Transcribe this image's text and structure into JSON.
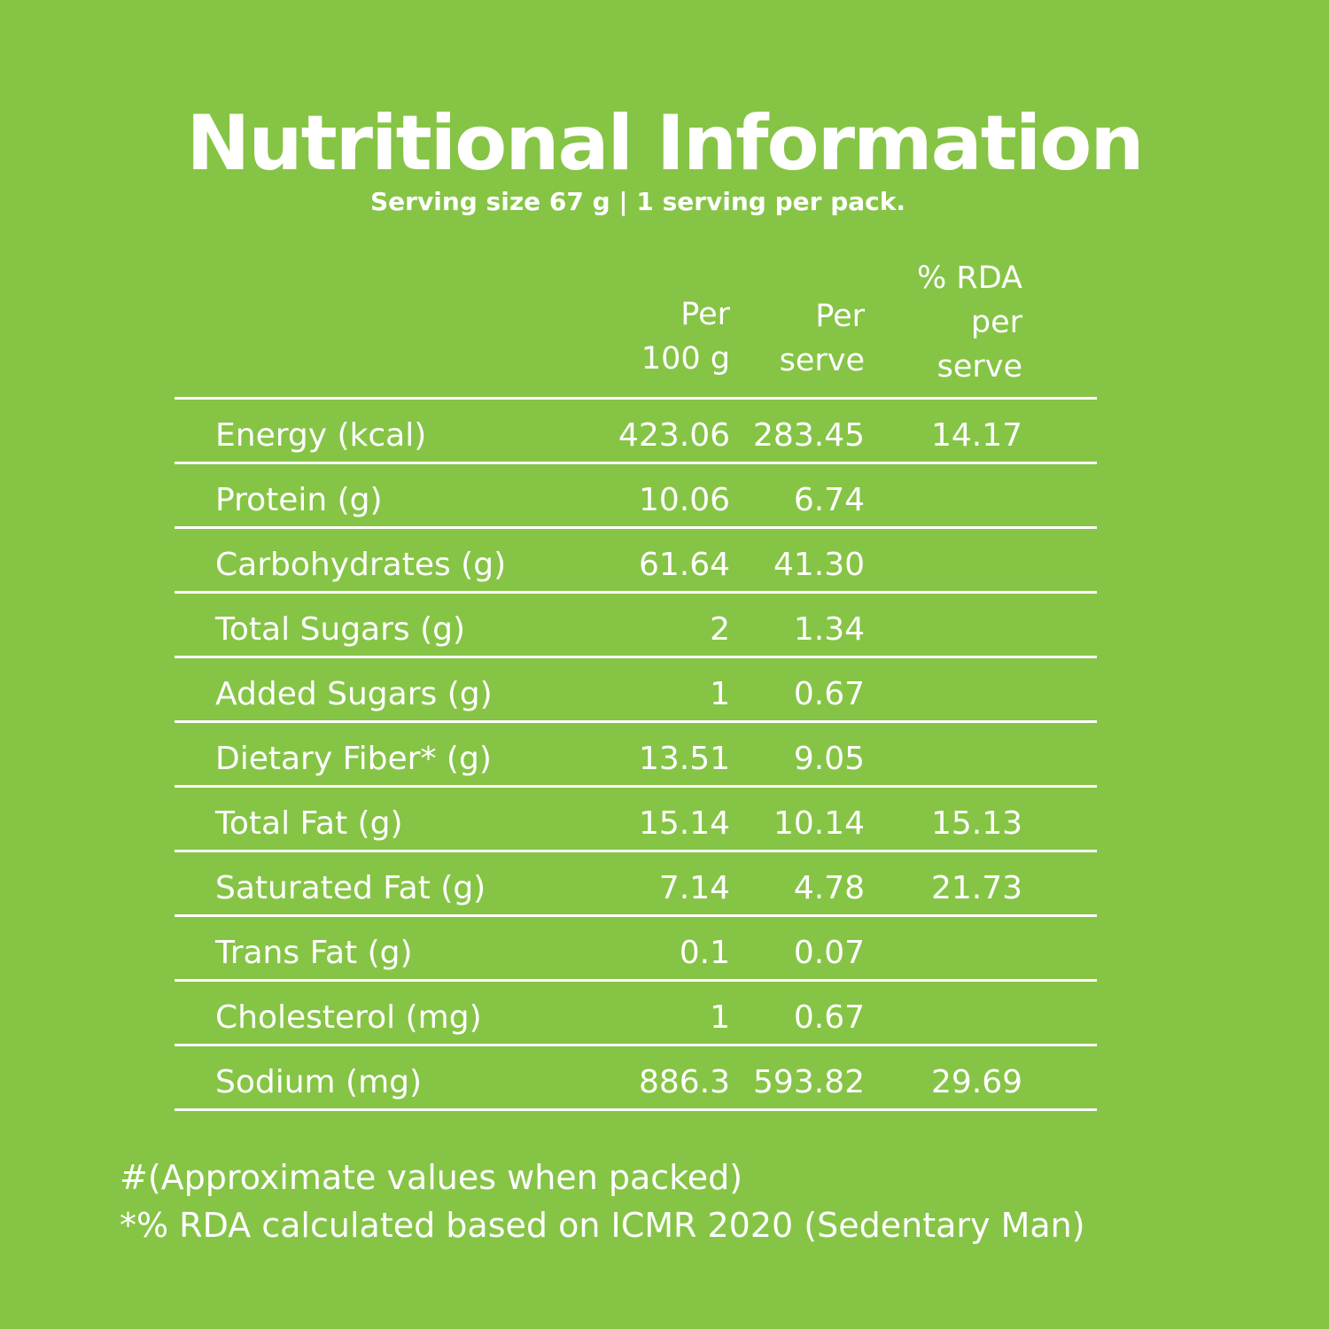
{
  "title": "Nutritional Information",
  "subtitle": "Serving size 67 g  |  1 serving per pack.",
  "columns": {
    "per_100g": "Per\n100 g",
    "per_serve": "Per\nserve",
    "rda": "% RDA\nper\nserve"
  },
  "rows": [
    {
      "label": "Energy (kcal)",
      "per_100g": "423.06",
      "per_serve": "283.45",
      "rda": "14.17"
    },
    {
      "label": "Protein (g)",
      "per_100g": "10.06",
      "per_serve": "6.74",
      "rda": ""
    },
    {
      "label": "Carbohydrates (g)",
      "per_100g": "61.64",
      "per_serve": "41.30",
      "rda": ""
    },
    {
      "label": "Total Sugars (g)",
      "per_100g": "2",
      "per_serve": "1.34",
      "rda": ""
    },
    {
      "label": "Added Sugars (g)",
      "per_100g": "1",
      "per_serve": "0.67",
      "rda": ""
    },
    {
      "label": "Dietary Fiber* (g)",
      "per_100g": "13.51",
      "per_serve": "9.05",
      "rda": ""
    },
    {
      "label": "Total Fat (g)",
      "per_100g": "15.14",
      "per_serve": "10.14",
      "rda": "15.13"
    },
    {
      "label": "Saturated Fat (g)",
      "per_100g": "7.14",
      "per_serve": "4.78",
      "rda": "21.73"
    },
    {
      "label": "Trans Fat (g)",
      "per_100g": "0.1",
      "per_serve": "0.07",
      "rda": ""
    },
    {
      "label": "Cholesterol (mg)",
      "per_100g": "1",
      "per_serve": "0.67",
      "rda": ""
    },
    {
      "label": "Sodium (mg)",
      "per_100g": "886.3",
      "per_serve": "593.82",
      "rda": "29.69"
    }
  ],
  "notes": [
    "#(Approximate values when packed)",
    "*% RDA calculated based on ICMR 2020 (Sedentary Man)"
  ],
  "colors": {
    "background": "#86c446",
    "text": "#ffffff"
  }
}
